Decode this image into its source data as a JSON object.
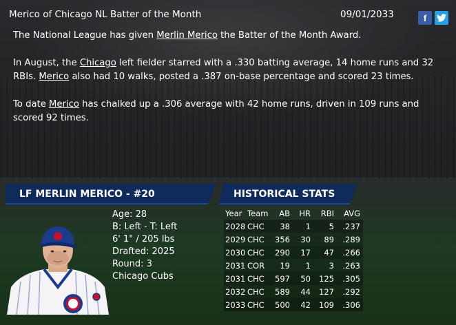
{
  "header": {
    "title": "Merico of Chicago NL Batter of the Month",
    "date": "09/01/2033",
    "facebook_icon": "f",
    "twitter_icon": "twitter-bird"
  },
  "article": {
    "p1": {
      "before": "The National League has given ",
      "link": "Merlin Merico",
      "after": " the Batter of the Month Award."
    },
    "p2": {
      "before": "In August, the ",
      "link1": "Chicago",
      "mid": " left fielder starred with a .330 batting average, 14 home runs and 32 RBIs. ",
      "link2": "Merico",
      "after": " also had 10 walks, posted a .387 on-base percentage and scored 23 times."
    },
    "p3": {
      "before": "To date ",
      "link": "Merico",
      "after": " has chalked up a .306 average with 42 home runs, driven in 109 runs and scored 92 times."
    }
  },
  "player": {
    "header": "LF MERLIN MERICO - #20",
    "age": "Age: 28",
    "bats_throws": "B: Left - T: Left",
    "height_weight": "6' 1\" / 205 lbs",
    "drafted": "Drafted: 2025",
    "round": "Round: 3",
    "team": "Chicago Cubs"
  },
  "historical": {
    "header": "HISTORICAL STATS",
    "columns": [
      "Year",
      "Team",
      "AB",
      "HR",
      "RBI",
      "AVG"
    ],
    "rows": [
      [
        "2028",
        "CHC",
        "38",
        "1",
        "5",
        ".237"
      ],
      [
        "2029",
        "CHC",
        "356",
        "30",
        "89",
        ".289"
      ],
      [
        "2030",
        "CHC",
        "290",
        "17",
        "47",
        ".266"
      ],
      [
        "2031",
        "COR",
        "19",
        "1",
        "3",
        ".263"
      ],
      [
        "2031",
        "CHC",
        "597",
        "50",
        "125",
        ".305"
      ],
      [
        "2032",
        "CHC",
        "589",
        "44",
        "127",
        ".292"
      ],
      [
        "2033",
        "CHC",
        "500",
        "42",
        "109",
        ".306"
      ]
    ]
  },
  "colors": {
    "panel": "#0f2b5b",
    "facebook": "#3b5ca8",
    "twitter": "#22a1e6"
  }
}
